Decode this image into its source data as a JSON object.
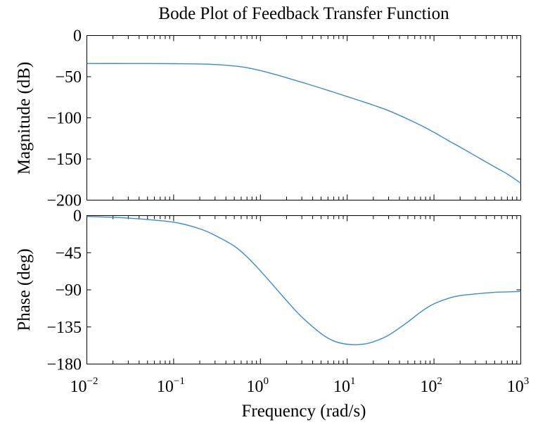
{
  "chart_data": [
    {
      "type": "line",
      "title": "Bode Plot of Feedback Transfer Function",
      "ylabel": "Magnitude (dB)",
      "xlabel": "",
      "xscale": "log",
      "xlim": [
        0.01,
        1000
      ],
      "ylim": [
        -200,
        0
      ],
      "yticks": [
        0,
        -50,
        -100,
        -150,
        -200
      ],
      "grid": false,
      "color": "#3b8bd0",
      "series": [
        {
          "x": [
            0.01,
            0.03,
            0.1,
            0.2,
            0.3,
            0.5,
            0.7,
            1,
            1.5,
            2,
            3,
            5,
            7,
            10,
            15,
            20,
            30,
            50,
            70,
            100,
            150,
            200,
            300,
            500,
            700,
            1000
          ],
          "values": [
            -34,
            -34,
            -34.2,
            -34.6,
            -35.2,
            -37,
            -39,
            -42.6,
            -47.5,
            -51.3,
            -56.8,
            -64,
            -68.9,
            -74.2,
            -80.2,
            -84.6,
            -91.3,
            -101.6,
            -109,
            -117.6,
            -128.3,
            -135.6,
            -146.2,
            -159.6,
            -168.3,
            -179.4
          ]
        }
      ]
    },
    {
      "type": "line",
      "title": "",
      "ylabel": "Phase (deg)",
      "xlabel": "Frequency (rad/s)",
      "xscale": "log",
      "xlim": [
        0.01,
        1000
      ],
      "ylim": [
        -180,
        0
      ],
      "yticks": [
        0,
        -45,
        -90,
        -135,
        -180
      ],
      "xticks": [
        {
          "base": "10",
          "exp": "−2",
          "value": 0.01
        },
        {
          "base": "10",
          "exp": "−1",
          "value": 0.1
        },
        {
          "base": "10",
          "exp": "0",
          "value": 1
        },
        {
          "base": "10",
          "exp": "1",
          "value": 10
        },
        {
          "base": "10",
          "exp": "2",
          "value": 100
        },
        {
          "base": "10",
          "exp": "3",
          "value": 1000
        }
      ],
      "grid": false,
      "color": "#3b8bd0",
      "series": [
        {
          "x": [
            0.01,
            0.03,
            0.1,
            0.2,
            0.3,
            0.5,
            0.7,
            1,
            1.5,
            2,
            3,
            5,
            7,
            10,
            15,
            20,
            30,
            50,
            70,
            100,
            150,
            200,
            300,
            500,
            700,
            1000
          ],
          "values": [
            -1,
            -3,
            -8,
            -16,
            -24,
            -37,
            -50,
            -67,
            -88,
            -103,
            -123,
            -143,
            -152,
            -156,
            -156,
            -153,
            -145,
            -129,
            -117,
            -107,
            -100,
            -97,
            -95,
            -93,
            -92.5,
            -92
          ]
        }
      ]
    }
  ]
}
